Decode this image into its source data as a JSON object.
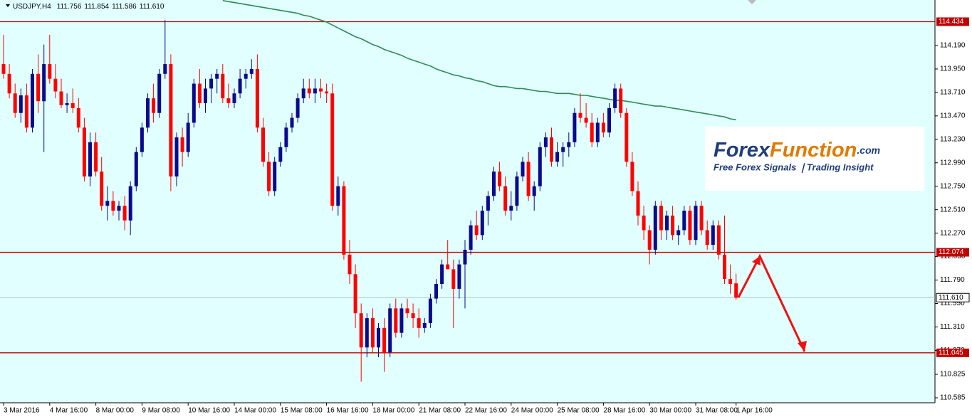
{
  "chart_data": {
    "type": "candlestick",
    "header": {
      "symbol": "USDJPY,H4",
      "ohlc": [
        "111.756",
        "111.854",
        "111.586",
        "111.610"
      ]
    },
    "logo": {
      "part1": "Forex",
      "part2": "Function",
      "suffix": ".com",
      "tagline": "Free Forex Signals ❘Trading Insight"
    },
    "bull_color": "#0a0a8c",
    "bear_color": "#ff0000",
    "background": "#e1fffe",
    "ylim": [
      110.534,
      114.656
    ],
    "yticks": [
      {
        "value": 114.19,
        "label": "114.190"
      },
      {
        "value": 113.95,
        "label": "113.950"
      },
      {
        "value": 113.71,
        "label": "113.710"
      },
      {
        "value": 113.47,
        "label": "113.470"
      },
      {
        "value": 113.23,
        "label": "113.230"
      },
      {
        "value": 112.99,
        "label": "112.990"
      },
      {
        "value": 112.75,
        "label": "112.750"
      },
      {
        "value": 112.51,
        "label": "112.510"
      },
      {
        "value": 112.27,
        "label": "112.270"
      },
      {
        "value": 112.03,
        "label": "112.030"
      },
      {
        "value": 111.79,
        "label": "111.790"
      },
      {
        "value": 111.55,
        "label": "111.550"
      },
      {
        "value": 111.31,
        "label": "111.310"
      },
      {
        "value": 111.07,
        "label": "111.070"
      },
      {
        "value": 110.825,
        "label": "110.825"
      },
      {
        "value": 110.585,
        "label": "110.585"
      }
    ],
    "levels": [
      {
        "value": 114.434,
        "label": "114.434",
        "color": "#c00000"
      },
      {
        "value": 112.074,
        "label": "112.074",
        "color": "#c00000"
      },
      {
        "value": 111.045,
        "label": "111.045",
        "color": "#c00000"
      }
    ],
    "current_price": {
      "value": 111.61,
      "label": "111.610"
    },
    "categories": [
      "3 Mar 2016",
      null,
      null,
      null,
      null,
      null,
      null,
      null,
      "4 Mar 16:00",
      null,
      null,
      null,
      null,
      null,
      null,
      null,
      "8 Mar 00:00",
      null,
      null,
      null,
      null,
      null,
      null,
      null,
      "9 Mar 08:00",
      null,
      null,
      null,
      null,
      null,
      null,
      null,
      "10 Mar 16:00",
      null,
      null,
      null,
      null,
      null,
      null,
      null,
      "14 Mar 00:00",
      null,
      null,
      null,
      null,
      null,
      null,
      null,
      "15 Mar 08:00",
      null,
      null,
      null,
      null,
      null,
      null,
      null,
      "16 Mar 16:00",
      null,
      null,
      null,
      null,
      null,
      null,
      null,
      "18 Mar 00:00",
      null,
      null,
      null,
      null,
      null,
      null,
      null,
      "21 Mar 08:00",
      null,
      null,
      null,
      null,
      null,
      null,
      null,
      "22 Mar 16:00",
      null,
      null,
      null,
      null,
      null,
      null,
      null,
      "24 Mar 00:00",
      null,
      null,
      null,
      null,
      null,
      null,
      null,
      "25 Mar 08:00",
      null,
      null,
      null,
      null,
      null,
      null,
      null,
      "28 Mar 16:00",
      null,
      null,
      null,
      null,
      null,
      null,
      null,
      "30 Mar 00:00",
      null,
      null,
      null,
      null,
      null,
      null,
      null,
      "31 Mar 08:00",
      null,
      null,
      null,
      null,
      null,
      null,
      "1 Apr 16:00"
    ],
    "candles": [
      [
        114.0,
        114.3,
        113.85,
        113.9
      ],
      [
        113.9,
        114.0,
        113.65,
        113.7
      ],
      [
        113.7,
        113.8,
        113.45,
        113.5
      ],
      [
        113.5,
        113.75,
        113.4,
        113.68
      ],
      [
        113.68,
        113.8,
        113.3,
        113.35
      ],
      [
        113.35,
        113.95,
        113.3,
        113.9
      ],
      [
        113.9,
        114.1,
        113.5,
        113.62
      ],
      [
        113.62,
        114.2,
        113.1,
        114.0
      ],
      [
        114.0,
        114.3,
        113.8,
        113.85
      ],
      [
        113.85,
        114.0,
        113.65,
        113.72
      ],
      [
        113.72,
        113.85,
        113.55,
        113.58
      ],
      [
        113.58,
        113.7,
        113.5,
        113.6
      ],
      [
        113.6,
        113.75,
        113.5,
        113.55
      ],
      [
        113.55,
        113.65,
        113.3,
        113.35
      ],
      [
        113.35,
        113.45,
        112.8,
        112.85
      ],
      [
        112.85,
        113.3,
        112.75,
        113.2
      ],
      [
        113.2,
        113.3,
        112.85,
        112.9
      ],
      [
        112.9,
        113.05,
        112.5,
        112.55
      ],
      [
        112.55,
        112.75,
        112.4,
        112.6
      ],
      [
        112.6,
        112.7,
        112.45,
        112.5
      ],
      [
        112.5,
        112.6,
        112.4,
        112.55
      ],
      [
        112.55,
        112.65,
        112.3,
        112.4
      ],
      [
        112.4,
        112.8,
        112.25,
        112.75
      ],
      [
        112.75,
        113.15,
        112.7,
        113.1
      ],
      [
        113.1,
        113.4,
        113.05,
        113.35
      ],
      [
        113.35,
        113.7,
        113.3,
        113.65
      ],
      [
        113.65,
        113.8,
        113.4,
        113.5
      ],
      [
        113.5,
        113.95,
        113.45,
        113.9
      ],
      [
        113.9,
        114.45,
        113.85,
        114.0
      ],
      [
        114.0,
        114.1,
        112.7,
        112.85
      ],
      [
        112.85,
        113.3,
        112.75,
        113.25
      ],
      [
        113.25,
        113.35,
        112.95,
        113.1
      ],
      [
        113.1,
        113.5,
        113.05,
        113.4
      ],
      [
        113.4,
        113.85,
        113.35,
        113.8
      ],
      [
        113.8,
        113.95,
        113.55,
        113.6
      ],
      [
        113.6,
        113.85,
        113.5,
        113.75
      ],
      [
        113.75,
        113.9,
        113.6,
        113.85
      ],
      [
        113.85,
        113.95,
        113.7,
        113.9
      ],
      [
        113.9,
        114.0,
        113.6,
        113.65
      ],
      [
        113.65,
        113.8,
        113.55,
        113.6
      ],
      [
        113.6,
        113.75,
        113.55,
        113.7
      ],
      [
        113.7,
        113.95,
        113.65,
        113.85
      ],
      [
        113.85,
        113.95,
        113.75,
        113.9
      ],
      [
        113.9,
        114.05,
        113.85,
        113.95
      ],
      [
        113.95,
        114.1,
        113.3,
        113.35
      ],
      [
        113.35,
        113.45,
        112.95,
        113.0
      ],
      [
        113.0,
        113.1,
        112.65,
        112.7
      ],
      [
        112.7,
        113.05,
        112.65,
        113.0
      ],
      [
        113.0,
        113.2,
        112.95,
        113.15
      ],
      [
        113.15,
        113.4,
        113.1,
        113.35
      ],
      [
        113.35,
        113.5,
        113.3,
        113.45
      ],
      [
        113.45,
        113.7,
        113.4,
        113.65
      ],
      [
        113.65,
        113.85,
        113.6,
        113.75
      ],
      [
        113.75,
        113.85,
        113.65,
        113.7
      ],
      [
        113.7,
        113.85,
        113.6,
        113.75
      ],
      [
        113.75,
        113.85,
        113.65,
        113.72
      ],
      [
        113.72,
        113.8,
        113.6,
        113.7
      ],
      [
        113.7,
        113.8,
        112.5,
        112.55
      ],
      [
        112.55,
        112.85,
        112.45,
        112.75
      ],
      [
        112.75,
        112.8,
        112.0,
        112.05
      ],
      [
        112.05,
        112.2,
        111.75,
        111.85
      ],
      [
        111.85,
        111.95,
        111.3,
        111.45
      ],
      [
        111.45,
        111.55,
        110.75,
        111.1
      ],
      [
        111.1,
        111.45,
        111.0,
        111.4
      ],
      [
        111.4,
        111.5,
        111.05,
        111.1
      ],
      [
        111.1,
        111.35,
        111.0,
        111.3
      ],
      [
        111.3,
        111.4,
        110.85,
        111.05
      ],
      [
        111.05,
        111.55,
        111.0,
        111.5
      ],
      [
        111.5,
        111.6,
        111.2,
        111.25
      ],
      [
        111.25,
        111.55,
        111.2,
        111.5
      ],
      [
        111.5,
        111.6,
        111.4,
        111.45
      ],
      [
        111.45,
        111.55,
        111.3,
        111.4
      ],
      [
        111.4,
        111.5,
        111.2,
        111.3
      ],
      [
        111.3,
        111.4,
        111.25,
        111.35
      ],
      [
        111.35,
        111.65,
        111.3,
        111.6
      ],
      [
        111.6,
        111.8,
        111.55,
        111.75
      ],
      [
        111.75,
        112.0,
        111.7,
        111.95
      ],
      [
        111.95,
        112.2,
        111.9,
        111.9
      ],
      [
        111.9,
        112.0,
        111.3,
        111.7
      ],
      [
        111.7,
        112.0,
        111.6,
        111.95
      ],
      [
        111.95,
        112.2,
        111.5,
        112.1
      ],
      [
        112.1,
        112.4,
        112.05,
        112.35
      ],
      [
        112.35,
        112.5,
        112.2,
        112.25
      ],
      [
        112.25,
        112.55,
        112.2,
        112.5
      ],
      [
        112.5,
        112.7,
        112.35,
        112.65
      ],
      [
        112.65,
        112.95,
        112.6,
        112.9
      ],
      [
        112.9,
        113.0,
        112.7,
        112.75
      ],
      [
        112.75,
        112.85,
        112.45,
        112.5
      ],
      [
        112.5,
        112.7,
        112.4,
        112.55
      ],
      [
        112.55,
        112.9,
        112.5,
        112.85
      ],
      [
        112.85,
        113.05,
        112.8,
        113.0
      ],
      [
        113.0,
        113.1,
        112.6,
        112.65
      ],
      [
        112.65,
        112.8,
        112.5,
        112.75
      ],
      [
        112.75,
        113.2,
        112.7,
        113.15
      ],
      [
        113.15,
        113.3,
        113.05,
        113.25
      ],
      [
        113.25,
        113.35,
        112.95,
        113.0
      ],
      [
        113.0,
        113.2,
        112.95,
        113.1
      ],
      [
        113.1,
        113.2,
        112.95,
        113.15
      ],
      [
        113.15,
        113.3,
        113.05,
        113.2
      ],
      [
        113.2,
        113.55,
        113.15,
        113.5
      ],
      [
        113.5,
        113.7,
        113.4,
        113.45
      ],
      [
        113.45,
        113.6,
        113.35,
        113.4
      ],
      [
        113.4,
        113.5,
        113.15,
        113.2
      ],
      [
        113.2,
        113.45,
        113.15,
        113.4
      ],
      [
        113.4,
        113.5,
        113.25,
        113.3
      ],
      [
        113.3,
        113.6,
        113.25,
        113.55
      ],
      [
        113.55,
        113.8,
        113.5,
        113.75
      ],
      [
        113.75,
        113.8,
        113.45,
        113.5
      ],
      [
        113.5,
        113.55,
        112.95,
        113.0
      ],
      [
        113.0,
        113.1,
        112.65,
        112.7
      ],
      [
        112.7,
        112.8,
        112.35,
        112.45
      ],
      [
        112.45,
        112.55,
        112.2,
        112.3
      ],
      [
        112.3,
        112.35,
        111.95,
        112.1
      ],
      [
        112.1,
        112.6,
        112.05,
        112.55
      ],
      [
        112.55,
        112.6,
        112.2,
        112.3
      ],
      [
        112.3,
        112.5,
        112.2,
        112.45
      ],
      [
        112.45,
        112.55,
        112.2,
        112.25
      ],
      [
        112.25,
        112.35,
        112.15,
        112.3
      ],
      [
        112.3,
        112.55,
        112.25,
        112.5
      ],
      [
        112.5,
        112.55,
        112.15,
        112.2
      ],
      [
        112.2,
        112.6,
        112.15,
        112.55
      ],
      [
        112.55,
        112.6,
        112.25,
        112.3
      ],
      [
        112.3,
        112.4,
        112.1,
        112.15
      ],
      [
        112.15,
        112.4,
        112.1,
        112.35
      ],
      [
        112.35,
        112.4,
        112.0,
        112.05
      ],
      [
        112.05,
        112.45,
        111.75,
        111.8
      ],
      [
        111.8,
        111.95,
        111.65,
        111.75
      ],
      [
        111.756,
        111.854,
        111.586,
        111.61
      ]
    ],
    "ma": {
      "color": "#2e8b57",
      "values": [
        null,
        null,
        null,
        null,
        null,
        null,
        null,
        null,
        null,
        null,
        null,
        null,
        null,
        null,
        null,
        null,
        null,
        null,
        null,
        null,
        null,
        null,
        null,
        null,
        null,
        null,
        null,
        null,
        null,
        null,
        null,
        null,
        null,
        null,
        null,
        null,
        null,
        null,
        114.65,
        114.64,
        114.63,
        114.62,
        114.61,
        114.6,
        114.59,
        114.58,
        114.57,
        114.56,
        114.55,
        114.54,
        114.53,
        114.52,
        114.5,
        114.49,
        114.47,
        114.45,
        114.43,
        114.4,
        114.37,
        114.34,
        114.31,
        114.28,
        114.26,
        114.23,
        114.2,
        114.18,
        114.15,
        114.13,
        114.11,
        114.09,
        114.06,
        114.04,
        114.02,
        114.0,
        113.98,
        113.95,
        113.93,
        113.91,
        113.89,
        113.88,
        113.86,
        113.85,
        113.83,
        113.82,
        113.8,
        113.78,
        113.77,
        113.77,
        113.76,
        113.75,
        113.75,
        113.74,
        113.73,
        113.72,
        113.72,
        113.71,
        113.7,
        113.7,
        113.7,
        113.69,
        113.68,
        113.68,
        113.67,
        113.66,
        113.65,
        113.64,
        113.63,
        113.63,
        113.62,
        113.61,
        113.6,
        113.59,
        113.58,
        113.57,
        113.57,
        113.56,
        113.55,
        113.54,
        113.53,
        113.52,
        113.51,
        113.5,
        113.49,
        113.48,
        113.47,
        113.46,
        113.44,
        113.43
      ]
    }
  }
}
